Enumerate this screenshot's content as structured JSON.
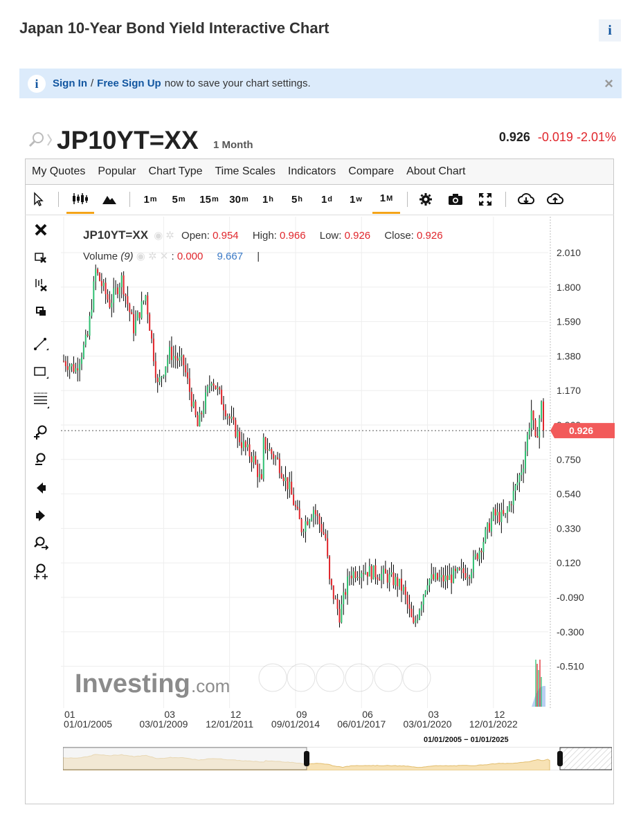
{
  "page": {
    "title": "Japan 10-Year Bond Yield Interactive Chart",
    "info_icon": "i"
  },
  "banner": {
    "icon": "i",
    "sign_in": "Sign In",
    "separator": "/",
    "free_sign_up": "Free Sign Up",
    "rest_text": "now to save your chart settings.",
    "close": "×"
  },
  "header": {
    "symbol": "JP10YT=XX",
    "period": "1 Month",
    "last": "0.926",
    "change": "-0.019",
    "change_pct": "-2.01%"
  },
  "menu": [
    "My Quotes",
    "Popular",
    "Chart Type",
    "Time Scales",
    "Indicators",
    "Compare",
    "About Chart"
  ],
  "toolbar": {
    "intervals": [
      {
        "base": "1",
        "unit": "m"
      },
      {
        "base": "5",
        "unit": "m"
      },
      {
        "base": "15",
        "unit": "m"
      },
      {
        "base": "30",
        "unit": "m"
      },
      {
        "base": "1",
        "unit": "h"
      },
      {
        "base": "5",
        "unit": "h"
      },
      {
        "base": "1",
        "unit": "d"
      },
      {
        "base": "1",
        "unit": "w"
      },
      {
        "base": "1",
        "unit": "M"
      }
    ],
    "active_interval": "1M",
    "icons": [
      "cursor-icon",
      "candlestick-icon",
      "mountain-icon",
      "settings-gear-icon",
      "camera-icon",
      "fullscreen-icon",
      "download-icon",
      "upload-icon"
    ]
  },
  "sidebar_tools": [
    "close-x-icon",
    "delete-drawing-icon",
    "delete-all-icon",
    "copy-icon",
    "trendline-icon",
    "rectangle-icon",
    "fibonacci-icon",
    "zoom-in-icon",
    "zoom-out-icon",
    "scroll-left-icon",
    "scroll-right-icon",
    "zoom-reset-icon",
    "zoom-fit-icon"
  ],
  "legend": {
    "symbol": "JP10YT=XX",
    "open_label": "Open:",
    "open": "0.954",
    "high_label": "High:",
    "high": "0.966",
    "low_label": "Low:",
    "low": "0.926",
    "close_label": "Close:",
    "close": "0.926",
    "volume_label": "Volume",
    "volume_period": "(9)",
    "volume_sep": ":",
    "volume_value": "0.000",
    "volume_ma": "9.667",
    "volume_bar": "|"
  },
  "watermark": {
    "brand": "Investing",
    "suffix": ".com"
  },
  "navigator": {
    "range_text": "01/01/2005 − 01/01/2025"
  },
  "colors": {
    "up": "#2fbf71",
    "down": "#e0262c",
    "wick": "#000000",
    "price_tag": "#f25a5a",
    "volume_area": "#a9c3ef",
    "accent": "#f4a418",
    "link": "#1256a0"
  },
  "chart_data": {
    "type": "candlestick",
    "symbol": "JP10YT=XX",
    "interval": "1 Month",
    "last_price": 0.926,
    "y_ticks": [
      2.01,
      1.8,
      1.59,
      1.38,
      1.17,
      0.96,
      0.75,
      0.54,
      0.33,
      0.12,
      -0.09,
      -0.3,
      -0.51
    ],
    "y_tick_labels": [
      "2.010",
      "1.800",
      "1.590",
      "1.380",
      "1.170",
      "0.960",
      "0.750",
      "0.540",
      "0.330",
      "0.120",
      "-0.090",
      "-0.300",
      "-0.510"
    ],
    "ylim": [
      -0.51,
      2.01
    ],
    "x_ticks": [
      {
        "top": "01",
        "bottom": "01/01/2005"
      },
      {
        "top": "03",
        "bottom": "03/01/2009"
      },
      {
        "top": "12",
        "bottom": "12/01/2011"
      },
      {
        "top": "09",
        "bottom": "09/01/2014"
      },
      {
        "top": "06",
        "bottom": "06/01/2017"
      },
      {
        "top": "03",
        "bottom": "03/01/2020"
      },
      {
        "top": "12",
        "bottom": "12/01/2022"
      }
    ],
    "x_range": [
      "2005-01",
      "2025-01"
    ],
    "grid": true,
    "series": [
      {
        "date": "2005-01",
        "close": 1.35
      },
      {
        "date": "2005-07",
        "close": 1.3
      },
      {
        "date": "2006-01",
        "close": 1.5
      },
      {
        "date": "2006-05",
        "close": 1.9
      },
      {
        "date": "2006-12",
        "close": 1.7
      },
      {
        "date": "2007-06",
        "close": 1.85
      },
      {
        "date": "2007-12",
        "close": 1.55
      },
      {
        "date": "2008-06",
        "close": 1.75
      },
      {
        "date": "2008-12",
        "close": 1.2
      },
      {
        "date": "2009-06",
        "close": 1.4
      },
      {
        "date": "2010-01",
        "close": 1.33
      },
      {
        "date": "2010-08",
        "close": 0.95
      },
      {
        "date": "2011-03",
        "close": 1.25
      },
      {
        "date": "2011-12",
        "close": 1.0
      },
      {
        "date": "2012-06",
        "close": 0.85
      },
      {
        "date": "2012-12",
        "close": 0.75
      },
      {
        "date": "2013-04",
        "close": 0.6
      },
      {
        "date": "2013-05",
        "close": 0.85
      },
      {
        "date": "2013-12",
        "close": 0.74
      },
      {
        "date": "2014-06",
        "close": 0.57
      },
      {
        "date": "2014-12",
        "close": 0.33
      },
      {
        "date": "2015-06",
        "close": 0.45
      },
      {
        "date": "2015-12",
        "close": 0.27
      },
      {
        "date": "2016-02",
        "close": 0.0
      },
      {
        "date": "2016-07",
        "close": -0.2
      },
      {
        "date": "2016-12",
        "close": 0.05
      },
      {
        "date": "2017-06",
        "close": 0.08
      },
      {
        "date": "2018-06",
        "close": 0.04
      },
      {
        "date": "2018-12",
        "close": 0.0
      },
      {
        "date": "2019-03",
        "close": -0.05
      },
      {
        "date": "2019-08",
        "close": -0.27
      },
      {
        "date": "2020-03",
        "close": 0.02
      },
      {
        "date": "2020-12",
        "close": 0.02
      },
      {
        "date": "2021-06",
        "close": 0.05
      },
      {
        "date": "2021-12",
        "close": 0.07
      },
      {
        "date": "2022-06",
        "close": 0.23
      },
      {
        "date": "2022-12",
        "close": 0.41
      },
      {
        "date": "2023-06",
        "close": 0.4
      },
      {
        "date": "2023-12",
        "close": 0.61
      },
      {
        "date": "2024-03",
        "close": 0.73
      },
      {
        "date": "2024-07",
        "close": 1.05
      },
      {
        "date": "2024-09",
        "close": 0.85
      },
      {
        "date": "2024-12",
        "close": 1.08
      },
      {
        "date": "2025-01",
        "close": 0.926
      }
    ]
  }
}
